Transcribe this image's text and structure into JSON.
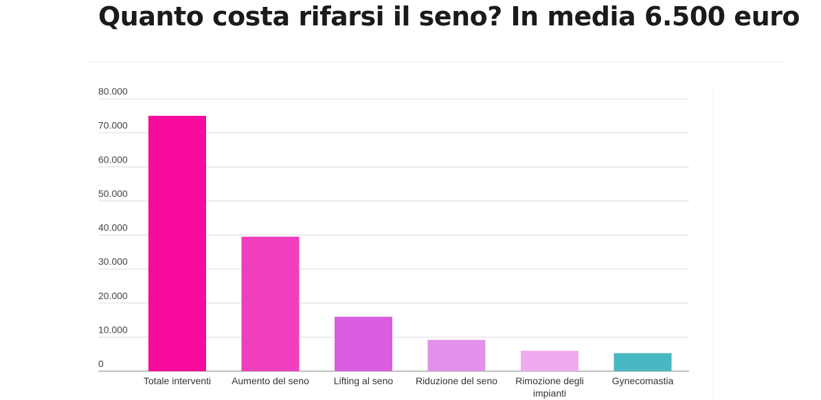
{
  "page": {
    "title": "Quanto costa rifarsi il seno? In media 6.500 euro"
  },
  "chart_data": {
    "type": "bar",
    "categories": [
      [
        "Totale interventi"
      ],
      [
        "Aumento del seno"
      ],
      [
        "Lifting al seno"
      ],
      [
        "Riduzione del seno"
      ],
      [
        "Rimozione degli",
        "impianti"
      ],
      [
        "Gynecomastia"
      ]
    ],
    "values": [
      75000,
      39500,
      16000,
      9200,
      6000,
      5300
    ],
    "colors": [
      "#f70a9c",
      "#ef3fbe",
      "#d95fe0",
      "#e191e9",
      "#f1aaee",
      "#48b8c2"
    ],
    "ylim": [
      0,
      80000
    ],
    "yticks": [
      0,
      10000,
      20000,
      30000,
      40000,
      50000,
      60000,
      70000,
      80000
    ],
    "ytick_labels": [
      "0",
      "10.000",
      "20.000",
      "30.000",
      "40.000",
      "50.000",
      "60.000",
      "70.000",
      "80.000"
    ],
    "grid": true,
    "legend": "none"
  }
}
